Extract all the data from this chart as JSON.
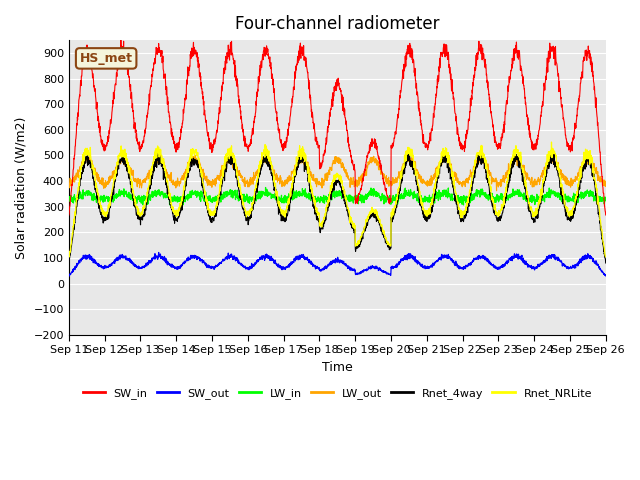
{
  "title": "Four-channel radiometer",
  "xlabel": "Time",
  "ylabel": "Solar radiation (W/m2)",
  "ylim": [
    -200,
    950
  ],
  "yticks": [
    -200,
    -100,
    0,
    100,
    200,
    300,
    400,
    500,
    600,
    700,
    800,
    900
  ],
  "x_tick_positions": [
    0,
    1,
    2,
    3,
    4,
    5,
    6,
    7,
    8,
    9,
    10,
    11,
    12,
    13,
    14,
    15
  ],
  "x_labels": [
    "Sep 11",
    "Sep 12",
    "Sep 13",
    "Sep 14",
    "Sep 15",
    "Sep 16",
    "Sep 17",
    "Sep 18",
    "Sep 19",
    "Sep 20",
    "Sep 21",
    "Sep 22",
    "Sep 23",
    "Sep 24",
    "Sep 25",
    "Sep 26"
  ],
  "annotation_text": "HS_met",
  "annotation_color": "#8B4513",
  "annotation_bg": "#F5F5DC",
  "background_color": "#E8E8E8",
  "colors": {
    "SW_in": "#FF0000",
    "SW_out": "#0000FF",
    "LW_in": "#00FF00",
    "LW_out": "#FFA500",
    "Rnet_4way": "#000000",
    "Rnet_NRLite": "#FFFF00"
  },
  "n_days": 15,
  "points_per_day": 144
}
